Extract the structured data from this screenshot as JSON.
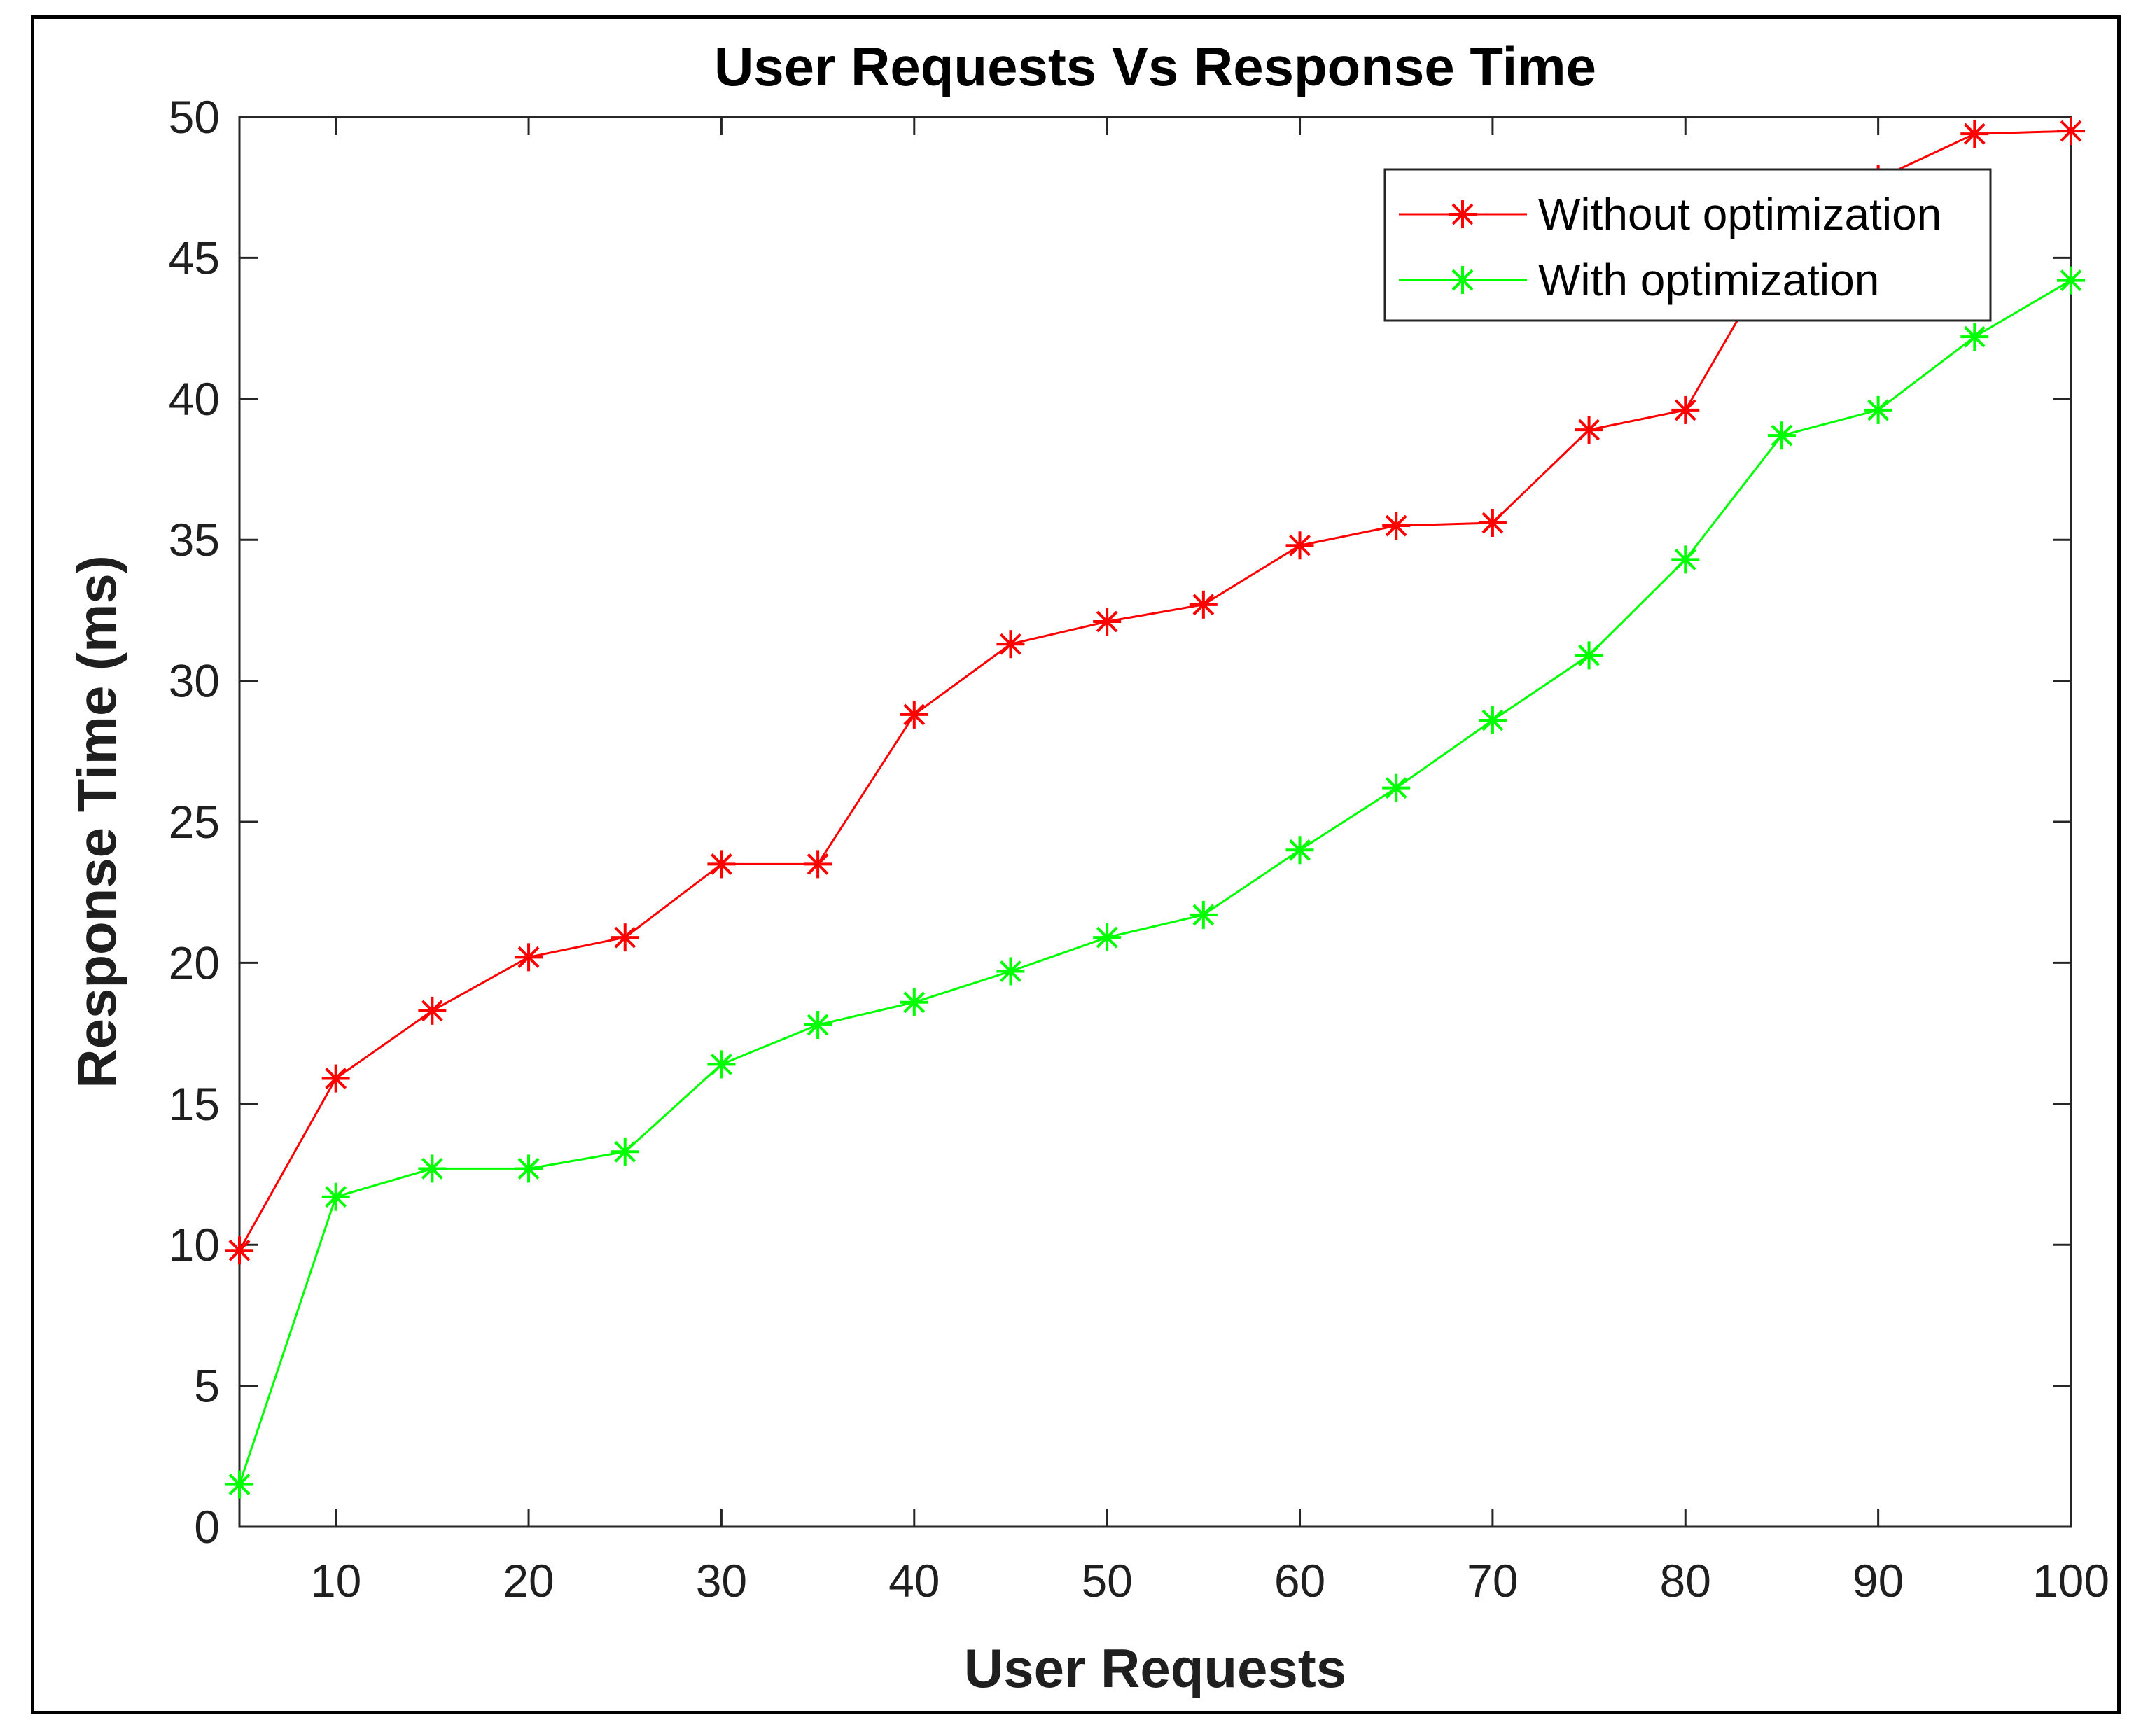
{
  "chart_data": {
    "type": "line",
    "title": "User Requests Vs Response Time",
    "xlabel": "User Requests",
    "ylabel": "Response Time (ms)",
    "xlim": [
      5,
      100
    ],
    "ylim": [
      0,
      50
    ],
    "xticks": [
      10,
      20,
      30,
      40,
      50,
      60,
      70,
      80,
      90,
      100
    ],
    "yticks": [
      0,
      5,
      10,
      15,
      20,
      25,
      30,
      35,
      40,
      45,
      50
    ],
    "grid": false,
    "legend_position": "top-right",
    "x": [
      5,
      10,
      15,
      20,
      25,
      30,
      35,
      40,
      45,
      50,
      55,
      60,
      65,
      70,
      75,
      80,
      85,
      90,
      95,
      100
    ],
    "series": [
      {
        "name": "Without optimization",
        "color": "#ff0000",
        "marker": "asterisk",
        "values": [
          9.8,
          15.9,
          18.3,
          20.2,
          20.9,
          23.5,
          23.5,
          28.8,
          31.3,
          32.1,
          32.7,
          34.8,
          35.5,
          35.6,
          38.9,
          39.6,
          45.5,
          47.8,
          49.4,
          49.5
        ]
      },
      {
        "name": "With optimization",
        "color": "#00ff00",
        "marker": "asterisk",
        "values": [
          1.5,
          11.7,
          12.7,
          12.7,
          13.3,
          16.4,
          17.8,
          18.6,
          19.7,
          20.9,
          21.7,
          24.0,
          26.2,
          28.6,
          30.9,
          34.3,
          38.7,
          39.6,
          42.2,
          44.2
        ]
      }
    ]
  }
}
